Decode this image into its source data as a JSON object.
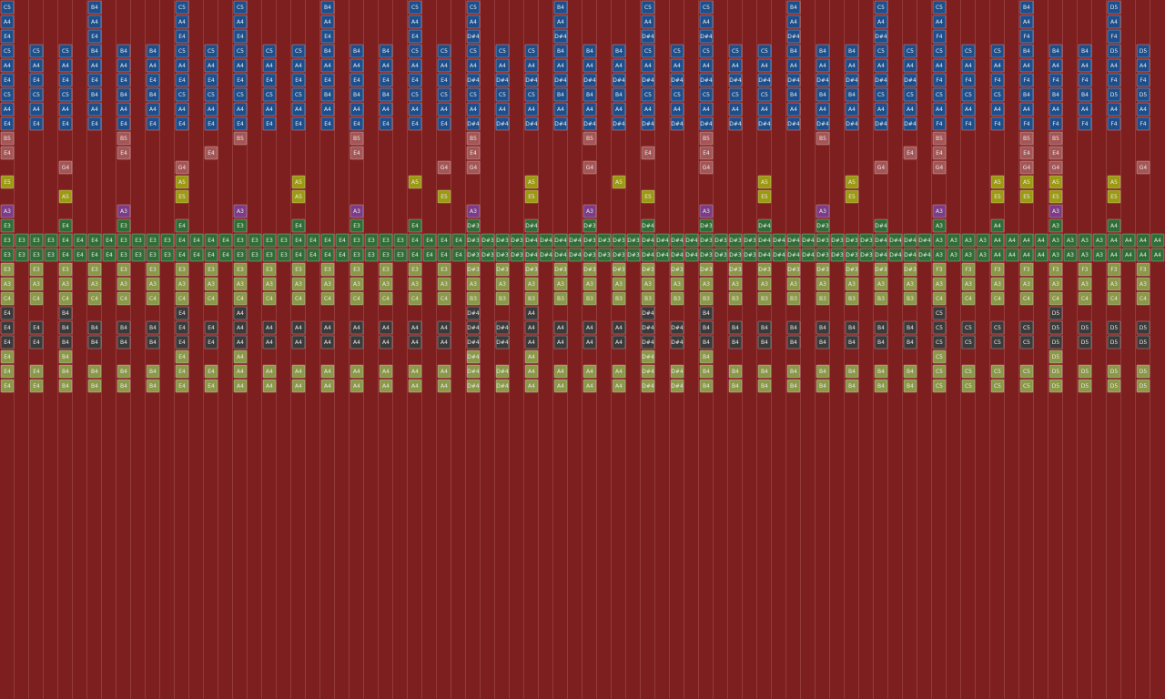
{
  "rows": [
    {
      "color": "#1d4f8c",
      "cells": [
        "C5",
        null,
        null,
        "B4",
        null,
        null,
        "C5",
        null,
        "C5",
        null,
        null,
        "B4",
        null,
        null,
        "C5",
        null,
        "C5",
        null,
        null,
        "B4",
        null,
        null,
        "C5",
        null,
        "C5",
        null,
        null,
        "B4",
        null,
        null,
        "C5",
        null,
        "C5",
        null,
        null,
        "B4",
        null,
        null,
        "D5",
        null
      ]
    },
    {
      "color": "#1d4f8c",
      "cells": [
        "A4",
        null,
        null,
        "A4",
        null,
        null,
        "A4",
        null,
        "A4",
        null,
        null,
        "A4",
        null,
        null,
        "A4",
        null,
        "A4",
        null,
        null,
        "A4",
        null,
        null,
        "A4",
        null,
        "A4",
        null,
        null,
        "A4",
        null,
        null,
        "A4",
        null,
        "A4",
        null,
        null,
        "A4",
        null,
        null,
        "A4",
        null
      ]
    },
    {
      "color": "#1d4f8c",
      "cells": [
        "E4",
        null,
        null,
        "E4",
        null,
        null,
        "E4",
        null,
        "E4",
        null,
        null,
        "E4",
        null,
        null,
        "E4",
        null,
        "D#4",
        null,
        null,
        "D#4",
        null,
        null,
        "D#4",
        null,
        "D#4",
        null,
        null,
        "D#4",
        null,
        null,
        "D#4",
        null,
        "F4",
        null,
        null,
        "F4",
        null,
        null,
        "F4",
        null
      ]
    },
    {
      "color": "#1d4f8c",
      "cells": [
        "C5",
        "C5",
        "C5",
        "B4",
        "B4",
        "B4",
        "C5",
        "C5",
        "C5",
        "C5",
        "C5",
        "B4",
        "B4",
        "B4",
        "C5",
        "C5",
        "C5",
        "C5",
        "C5",
        "B4",
        "B4",
        "B4",
        "C5",
        "C5",
        "C5",
        "C5",
        "C5",
        "B4",
        "B4",
        "B4",
        "C5",
        "C5",
        "C5",
        "C5",
        "C5",
        "B4",
        "B4",
        "B4",
        "D5",
        "D5"
      ]
    },
    {
      "color": "#1d4f8c",
      "cells": [
        "A4",
        "A4",
        "A4",
        "A4",
        "A4",
        "A4",
        "A4",
        "A4",
        "A4",
        "A4",
        "A4",
        "A4",
        "A4",
        "A4",
        "A4",
        "A4",
        "A4",
        "A4",
        "A4",
        "A4",
        "A4",
        "A4",
        "A4",
        "A4",
        "A4",
        "A4",
        "A4",
        "A4",
        "A4",
        "A4",
        "A4",
        "A4",
        "A4",
        "A4",
        "A4",
        "A4",
        "A4",
        "A4",
        "A4",
        "A4"
      ]
    },
    {
      "color": "#1d4f8c",
      "cells": [
        "E4",
        "E4",
        "E4",
        "E4",
        "E4",
        "E4",
        "E4",
        "E4",
        "E4",
        "E4",
        "E4",
        "E4",
        "E4",
        "E4",
        "E4",
        "E4",
        "D#4",
        "D#4",
        "D#4",
        "D#4",
        "D#4",
        "D#4",
        "D#4",
        "D#4",
        "D#4",
        "D#4",
        "D#4",
        "D#4",
        "D#4",
        "D#4",
        "D#4",
        "D#4",
        "F4",
        "F4",
        "F4",
        "F4",
        "F4",
        "F4",
        "F4",
        "F4"
      ]
    },
    {
      "color": "#1d4f8c",
      "cells": [
        "C5",
        "C5",
        "C5",
        "B4",
        "B4",
        "B4",
        "C5",
        "C5",
        "C5",
        "C5",
        "C5",
        "B4",
        "B4",
        "B4",
        "C5",
        "C5",
        "C5",
        "C5",
        "C5",
        "B4",
        "B4",
        "B4",
        "C5",
        "C5",
        "C5",
        "C5",
        "C5",
        "B4",
        "B4",
        "B4",
        "C5",
        "C5",
        "C5",
        "C5",
        "C5",
        "B4",
        "B4",
        "B4",
        "D5",
        "D5"
      ]
    },
    {
      "color": "#1d4f8c",
      "cells": [
        "A4",
        "A4",
        "A4",
        "A4",
        "A4",
        "A4",
        "A4",
        "A4",
        "A4",
        "A4",
        "A4",
        "A4",
        "A4",
        "A4",
        "A4",
        "A4",
        "A4",
        "A4",
        "A4",
        "A4",
        "A4",
        "A4",
        "A4",
        "A4",
        "A4",
        "A4",
        "A4",
        "A4",
        "A4",
        "A4",
        "A4",
        "A4",
        "A4",
        "A4",
        "A4",
        "A4",
        "A4",
        "A4",
        "A4",
        "A4"
      ]
    },
    {
      "color": "#1d4f8c",
      "cells": [
        "E4",
        "E4",
        "E4",
        "E4",
        "E4",
        "E4",
        "E4",
        "E4",
        "E4",
        "E4",
        "E4",
        "E4",
        "E4",
        "E4",
        "E4",
        "E4",
        "D#4",
        "D#4",
        "D#4",
        "D#4",
        "D#4",
        "D#4",
        "D#4",
        "D#4",
        "D#4",
        "D#4",
        "D#4",
        "D#4",
        "D#4",
        "D#4",
        "D#4",
        "D#4",
        "F4",
        "F4",
        "F4",
        "F4",
        "F4",
        "F4",
        "F4",
        "F4"
      ]
    },
    {
      "color": "#a45656",
      "cells": [
        "B5",
        null,
        null,
        null,
        "B5",
        null,
        null,
        null,
        "B5",
        null,
        null,
        null,
        "B5",
        null,
        null,
        null,
        "B5",
        null,
        null,
        null,
        "B5",
        null,
        null,
        null,
        "B5",
        null,
        null,
        null,
        "B5",
        null,
        null,
        null,
        "B5",
        null,
        null,
        "B5",
        "B5",
        null,
        null,
        null
      ]
    },
    {
      "color": "#a45656",
      "cells": [
        "E4",
        null,
        null,
        null,
        "E4",
        null,
        null,
        "E4",
        null,
        null,
        null,
        null,
        "E4",
        null,
        null,
        null,
        "E4",
        null,
        null,
        null,
        null,
        null,
        "E4",
        null,
        "E4",
        null,
        null,
        null,
        null,
        null,
        null,
        "E4",
        "E4",
        null,
        null,
        "E4",
        "E4",
        null,
        null,
        null
      ]
    },
    {
      "color": "#a45656",
      "cells": [
        null,
        null,
        "G4",
        null,
        null,
        null,
        "G4",
        null,
        null,
        null,
        null,
        null,
        null,
        null,
        null,
        "G4",
        "G4",
        null,
        null,
        null,
        "G4",
        null,
        null,
        null,
        "G4",
        null,
        null,
        null,
        null,
        null,
        "G4",
        null,
        "G4",
        null,
        null,
        "G4",
        "G4",
        null,
        null,
        "G4"
      ]
    },
    {
      "color": "#9c9a12",
      "cells": [
        "E5",
        null,
        null,
        null,
        null,
        null,
        "A5",
        null,
        null,
        null,
        "A5",
        null,
        null,
        null,
        "A5",
        null,
        null,
        null,
        "A5",
        null,
        null,
        "A5",
        null,
        null,
        null,
        null,
        "A5",
        null,
        null,
        "A5",
        null,
        null,
        null,
        null,
        "A5",
        "A5",
        "A5",
        null,
        "A5",
        null
      ]
    },
    {
      "color": "#9c9a12",
      "cells": [
        null,
        null,
        "A5",
        null,
        null,
        null,
        "E5",
        null,
        null,
        null,
        "A5",
        null,
        null,
        null,
        null,
        "E5",
        null,
        null,
        "E5",
        null,
        null,
        null,
        "E5",
        null,
        null,
        null,
        "E5",
        null,
        null,
        "E5",
        null,
        null,
        null,
        null,
        "E5",
        "E5",
        "E5",
        null,
        "E5",
        null
      ]
    },
    {
      "color": "#7c3c88",
      "cells": [
        "A3",
        null,
        null,
        null,
        "A3",
        null,
        null,
        null,
        "A3",
        null,
        null,
        null,
        "A3",
        null,
        null,
        null,
        "A3",
        null,
        null,
        null,
        "A3",
        null,
        null,
        null,
        "A3",
        null,
        null,
        null,
        "A3",
        null,
        null,
        null,
        "A3",
        null,
        null,
        null,
        "A3",
        null,
        null,
        null
      ]
    },
    {
      "color": "#2f6e36",
      "cells": [
        "E3",
        null,
        "E4",
        null,
        "E3",
        null,
        "E4",
        null,
        "E3",
        null,
        "E4",
        null,
        "E3",
        null,
        "E4",
        null,
        "D#3",
        null,
        "D#4",
        null,
        "D#3",
        null,
        "D#4",
        null,
        "D#3",
        null,
        "D#4",
        null,
        "D#3",
        null,
        "D#4",
        null,
        "A3",
        null,
        "A4",
        null,
        "A3",
        null,
        "A4",
        null
      ]
    },
    {
      "color": "#2f6e36",
      "cells": [
        "E3",
        "E3",
        "E3",
        "E3",
        "E4",
        "E4",
        "E4",
        "E4",
        "E3",
        "E3",
        "E3",
        "E3",
        "E4",
        "E4",
        "E4",
        "E4",
        "E3",
        "E3",
        "E3",
        "E3",
        "E4",
        "E4",
        "E4",
        "E4",
        "E3",
        "E3",
        "E3",
        "E3",
        "E4",
        "E4",
        "E4",
        "E4",
        "D#3",
        "D#3",
        "D#3",
        "D#3",
        "D#4",
        "D#4",
        "D#4",
        "D#4",
        "D#3",
        "D#3",
        "D#3",
        "D#3",
        "D#4",
        "D#4",
        "D#4",
        "D#4",
        "D#3",
        "D#3",
        "D#3",
        "D#3",
        "D#4",
        "D#4",
        "D#4",
        "D#4",
        "D#3",
        "D#3",
        "D#3",
        "D#3",
        "D#4",
        "D#4",
        "D#4",
        "D#4",
        "A3",
        "A3",
        "A3",
        "A3",
        "A4",
        "A4",
        "A4",
        "A4",
        "A3",
        "A3",
        "A3",
        "A3",
        "A4",
        "A4",
        "A4",
        "A4"
      ]
    },
    {
      "color": "#2f6e36",
      "cells": [
        "E3",
        "E3",
        "E3",
        "E3",
        "E4",
        "E4",
        "E4",
        "E4",
        "E3",
        "E3",
        "E3",
        "E3",
        "E4",
        "E4",
        "E4",
        "E4",
        "E3",
        "E3",
        "E3",
        "E3",
        "E4",
        "E4",
        "E4",
        "E4",
        "E3",
        "E3",
        "E3",
        "E3",
        "E4",
        "E4",
        "E4",
        "E4",
        "D#3",
        "D#3",
        "D#3",
        "D#3",
        "D#4",
        "D#4",
        "D#4",
        "D#4",
        "D#3",
        "D#3",
        "D#3",
        "D#3",
        "D#4",
        "D#4",
        "D#4",
        "D#4",
        "D#3",
        "D#3",
        "D#3",
        "D#3",
        "D#4",
        "D#4",
        "D#4",
        "D#4",
        "D#3",
        "D#3",
        "D#3",
        "D#3",
        "D#4",
        "D#4",
        "D#4",
        "D#4",
        "A3",
        "A3",
        "A3",
        "A3",
        "A4",
        "A4",
        "A4",
        "A4",
        "A3",
        "A3",
        "A3",
        "A3",
        "A4",
        "A4",
        "A4",
        "A4"
      ]
    },
    {
      "color": "#8a9848",
      "cells": [
        "E3",
        "E3",
        "E3",
        "E3",
        "E3",
        "E3",
        "E3",
        "E3",
        "E3",
        "E3",
        "E3",
        "E3",
        "E3",
        "E3",
        "E3",
        "E3",
        "D#3",
        "D#3",
        "D#3",
        "D#3",
        "D#3",
        "D#3",
        "D#3",
        "D#3",
        "D#3",
        "D#3",
        "D#3",
        "D#3",
        "D#3",
        "D#3",
        "D#3",
        "D#3",
        "F3",
        "F3",
        "F3",
        "F3",
        "F3",
        "F3",
        "F3",
        "F3"
      ]
    },
    {
      "color": "#8a9848",
      "cells": [
        "A3",
        "A3",
        "A3",
        "A3",
        "A3",
        "A3",
        "A3",
        "A3",
        "A3",
        "A3",
        "A3",
        "A3",
        "A3",
        "A3",
        "A3",
        "A3",
        "A3",
        "A3",
        "A3",
        "A3",
        "A3",
        "A3",
        "A3",
        "A3",
        "A3",
        "A3",
        "A3",
        "A3",
        "A3",
        "A3",
        "A3",
        "A3",
        "A3",
        "A3",
        "A3",
        "A3",
        "A3",
        "A3",
        "A3",
        "A3"
      ]
    },
    {
      "color": "#8a9848",
      "cells": [
        "C4",
        "C4",
        "C4",
        "C4",
        "C4",
        "C4",
        "C4",
        "C4",
        "C4",
        "C4",
        "C4",
        "C4",
        "C4",
        "C4",
        "C4",
        "C4",
        "B3",
        "B3",
        "B3",
        "B3",
        "B3",
        "B3",
        "B3",
        "B3",
        "B3",
        "B3",
        "B3",
        "B3",
        "B3",
        "B3",
        "B3",
        "B3",
        "C4",
        "C4",
        "C4",
        "C4",
        "C4",
        "C4",
        "C4",
        "C4"
      ]
    },
    {
      "color": "#3a3a3a",
      "cells": [
        "E4",
        null,
        "B4",
        null,
        null,
        null,
        "E4",
        null,
        "A4",
        null,
        null,
        null,
        null,
        null,
        null,
        null,
        "D#4",
        null,
        "A4",
        null,
        null,
        null,
        "D#4",
        null,
        "B4",
        null,
        null,
        null,
        null,
        null,
        null,
        null,
        "C5",
        null,
        null,
        null,
        "D5",
        null,
        null,
        null
      ]
    },
    {
      "color": "#3a3a3a",
      "cells": [
        "E4",
        "E4",
        "B4",
        "B4",
        "B4",
        "B4",
        "E4",
        "E4",
        "A4",
        "A4",
        "A4",
        "A4",
        "A4",
        "A4",
        "A4",
        "A4",
        "D#4",
        "D#4",
        "A4",
        "A4",
        "A4",
        "A4",
        "D#4",
        "D#4",
        "B4",
        "B4",
        "B4",
        "B4",
        "B4",
        "B4",
        "B4",
        "B4",
        "C5",
        "C5",
        "C5",
        "C5",
        "D5",
        "D5",
        "D5",
        "D5"
      ]
    },
    {
      "color": "#3a3a3a",
      "cells": [
        "E4",
        "E4",
        "B4",
        "B4",
        "B4",
        "B4",
        "E4",
        "E4",
        "A4",
        "A4",
        "A4",
        "A4",
        "A4",
        "A4",
        "A4",
        "A4",
        "D#4",
        "D#4",
        "A4",
        "A4",
        "A4",
        "A4",
        "D#4",
        "D#4",
        "B4",
        "B4",
        "B4",
        "B4",
        "B4",
        "B4",
        "B4",
        "B4",
        "C5",
        "C5",
        "C5",
        "C5",
        "D5",
        "D5",
        "D5",
        "D5"
      ]
    },
    {
      "color": "#8a9848",
      "cells": [
        "E4",
        null,
        "B4",
        null,
        null,
        null,
        "E4",
        null,
        "A4",
        null,
        null,
        null,
        null,
        null,
        null,
        null,
        "D#4",
        null,
        "A4",
        null,
        null,
        null,
        "D#4",
        null,
        "B4",
        null,
        null,
        null,
        null,
        null,
        null,
        null,
        "C5",
        null,
        null,
        null,
        "D5",
        null,
        null,
        null
      ]
    },
    {
      "color": "#8a9848",
      "cells": [
        "E4",
        "E4",
        "B4",
        "B4",
        "B4",
        "B4",
        "E4",
        "E4",
        "A4",
        "A4",
        "A4",
        "A4",
        "A4",
        "A4",
        "A4",
        "A4",
        "D#4",
        "D#4",
        "A4",
        "A4",
        "A4",
        "A4",
        "D#4",
        "D#4",
        "B4",
        "B4",
        "B4",
        "B4",
        "B4",
        "B4",
        "B4",
        "B4",
        "C5",
        "C5",
        "C5",
        "C5",
        "D5",
        "D5",
        "D5",
        "D5"
      ]
    },
    {
      "color": "#8a9848",
      "cells": [
        "E4",
        "E4",
        "B4",
        "B4",
        "B4",
        "B4",
        "E4",
        "E4",
        "A4",
        "A4",
        "A4",
        "A4",
        "A4",
        "A4",
        "A4",
        "A4",
        "D#4",
        "D#4",
        "A4",
        "A4",
        "A4",
        "A4",
        "D#4",
        "D#4",
        "B4",
        "B4",
        "B4",
        "B4",
        "B4",
        "B4",
        "B4",
        "B4",
        "C5",
        "C5",
        "C5",
        "C5",
        "D5",
        "D5",
        "D5",
        "D5"
      ]
    }
  ]
}
